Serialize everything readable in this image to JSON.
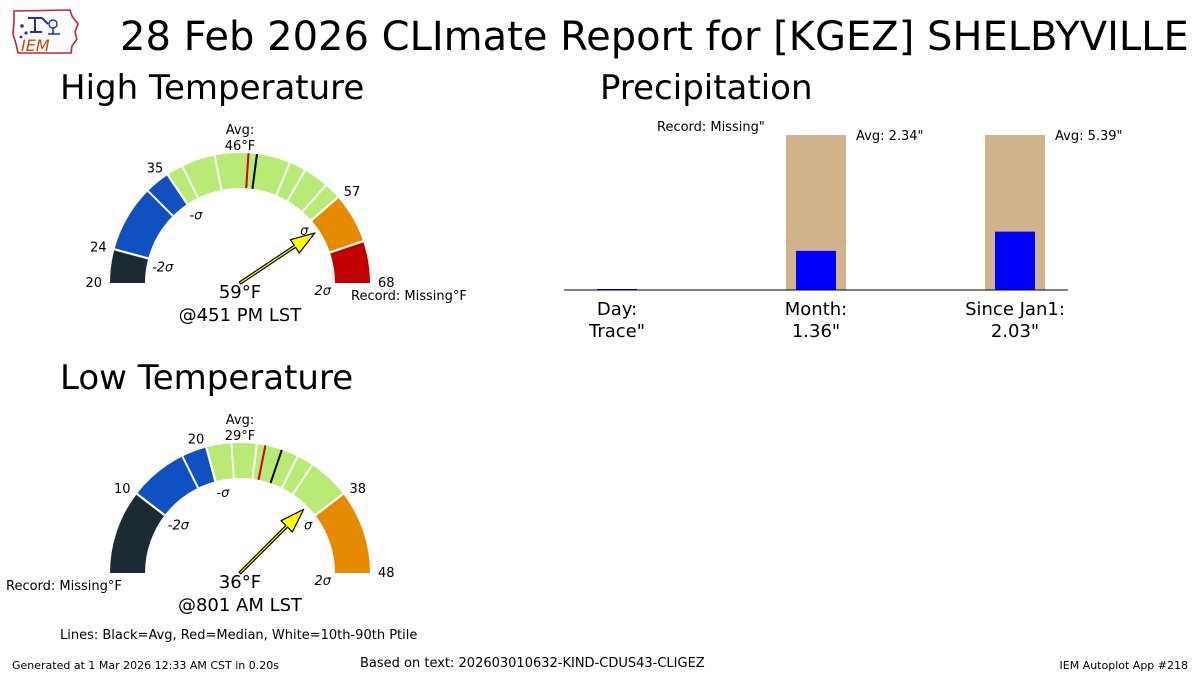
{
  "header": {
    "title": "28 Feb 2026 CLImate Report for [KGEZ] SHELBYVILLE",
    "logo_text": "IEM"
  },
  "high": {
    "section_title": "High Temperature",
    "avg_label": "Avg:",
    "avg_value": "46°F",
    "observed": "59°F",
    "time": "@451 PM LST",
    "record": "Record: Missing°F"
  },
  "low": {
    "section_title": "Low Temperature",
    "avg_label": "Avg:",
    "avg_value": "29°F",
    "observed": "36°F",
    "time": "@801 AM LST",
    "record": "Record: Missing°F"
  },
  "precip": {
    "section_title": "Precipitation",
    "record": "Record: Missing\""
  },
  "footer": {
    "lines_legend": "Lines: Black=Avg, Red=Median, White=10th-90th Ptile",
    "generated": "Generated at 1 Mar 2026 12:33 AM CST in 0.20s",
    "based_on": "Based on text: 202603010632-KIND-CDUS43-CLIGEZ",
    "app": "IEM Autoplot App #218"
  },
  "colors": {
    "dark": "#1b2a33",
    "blue": "#1150c0",
    "light_green": "#b9ea75",
    "orange": "#e68a00",
    "red": "#c00000",
    "arrow_fill": "#ffff00",
    "bar_avg": "#d2b48c",
    "bar_obs": "#0000ff"
  },
  "chart_data": [
    {
      "type": "gauge",
      "title": "High Temperature",
      "units": "°F",
      "range": [
        20,
        68
      ],
      "value": 59,
      "average": 46,
      "median": 45,
      "observed_label": "59°F",
      "time_label": "@451 PM LST",
      "ticks": [
        {
          "value": 20,
          "label": "20"
        },
        {
          "value": 24,
          "label": "24"
        },
        {
          "value": 35,
          "label": "35"
        },
        {
          "value": 57,
          "label": "57"
        },
        {
          "value": 68,
          "label": "68"
        }
      ],
      "sigma_labels": [
        {
          "value": 24,
          "label": "-2σ"
        },
        {
          "value": 35,
          "label": "-σ"
        },
        {
          "value": 57,
          "label": "σ"
        },
        {
          "value": 68,
          "label": "2σ"
        }
      ],
      "segments": [
        {
          "from": 20,
          "to": 24,
          "color": "#1b2a33"
        },
        {
          "from": 24,
          "to": 35,
          "color": "#1150c0"
        },
        {
          "from": 35,
          "to": 57,
          "color": "#b9ea75"
        },
        {
          "from": 57,
          "to": 63,
          "color": "#e68a00"
        },
        {
          "from": 63,
          "to": 68,
          "color": "#c00000"
        }
      ],
      "percentile_lines": [
        32,
        37,
        41,
        50,
        52,
        55
      ]
    },
    {
      "type": "gauge",
      "title": "Low Temperature",
      "units": "°F",
      "range": [
        0,
        48
      ],
      "value": 36,
      "average": 29,
      "median": 27,
      "observed_label": "36°F",
      "time_label": "@801 AM LST",
      "ticks": [
        {
          "value": 10,
          "label": "10"
        },
        {
          "value": 20,
          "label": "20"
        },
        {
          "value": 38,
          "label": "38"
        },
        {
          "value": 48,
          "label": "48"
        }
      ],
      "sigma_labels": [
        {
          "value": 10,
          "label": "-2σ"
        },
        {
          "value": 20,
          "label": "-σ"
        },
        {
          "value": 38,
          "label": "σ"
        },
        {
          "value": 48,
          "label": "2σ"
        }
      ],
      "segments": [
        {
          "from": 0,
          "to": 10,
          "color": "#1b2a33"
        },
        {
          "from": 10,
          "to": 20,
          "color": "#1150c0"
        },
        {
          "from": 20,
          "to": 38,
          "color": "#b9ea75"
        },
        {
          "from": 38,
          "to": 48,
          "color": "#e68a00"
        }
      ],
      "percentile_lines": [
        17,
        20,
        23,
        26,
        31,
        33
      ]
    },
    {
      "type": "bar",
      "title": "Precipitation",
      "units": "in",
      "categories": [
        "Day:",
        "Month:",
        "Since Jan1:"
      ],
      "value_labels": [
        "Trace\"",
        "1.36\"",
        "2.03\""
      ],
      "series": [
        {
          "name": "Avg",
          "values": [
            null,
            2.34,
            5.39
          ],
          "labels": [
            "",
            "Avg: 2.34\"",
            "Avg: 5.39\""
          ]
        },
        {
          "name": "Observed",
          "values": [
            0.0001,
            1.36,
            2.03
          ]
        }
      ],
      "annotation": "Record: Missing\""
    }
  ]
}
